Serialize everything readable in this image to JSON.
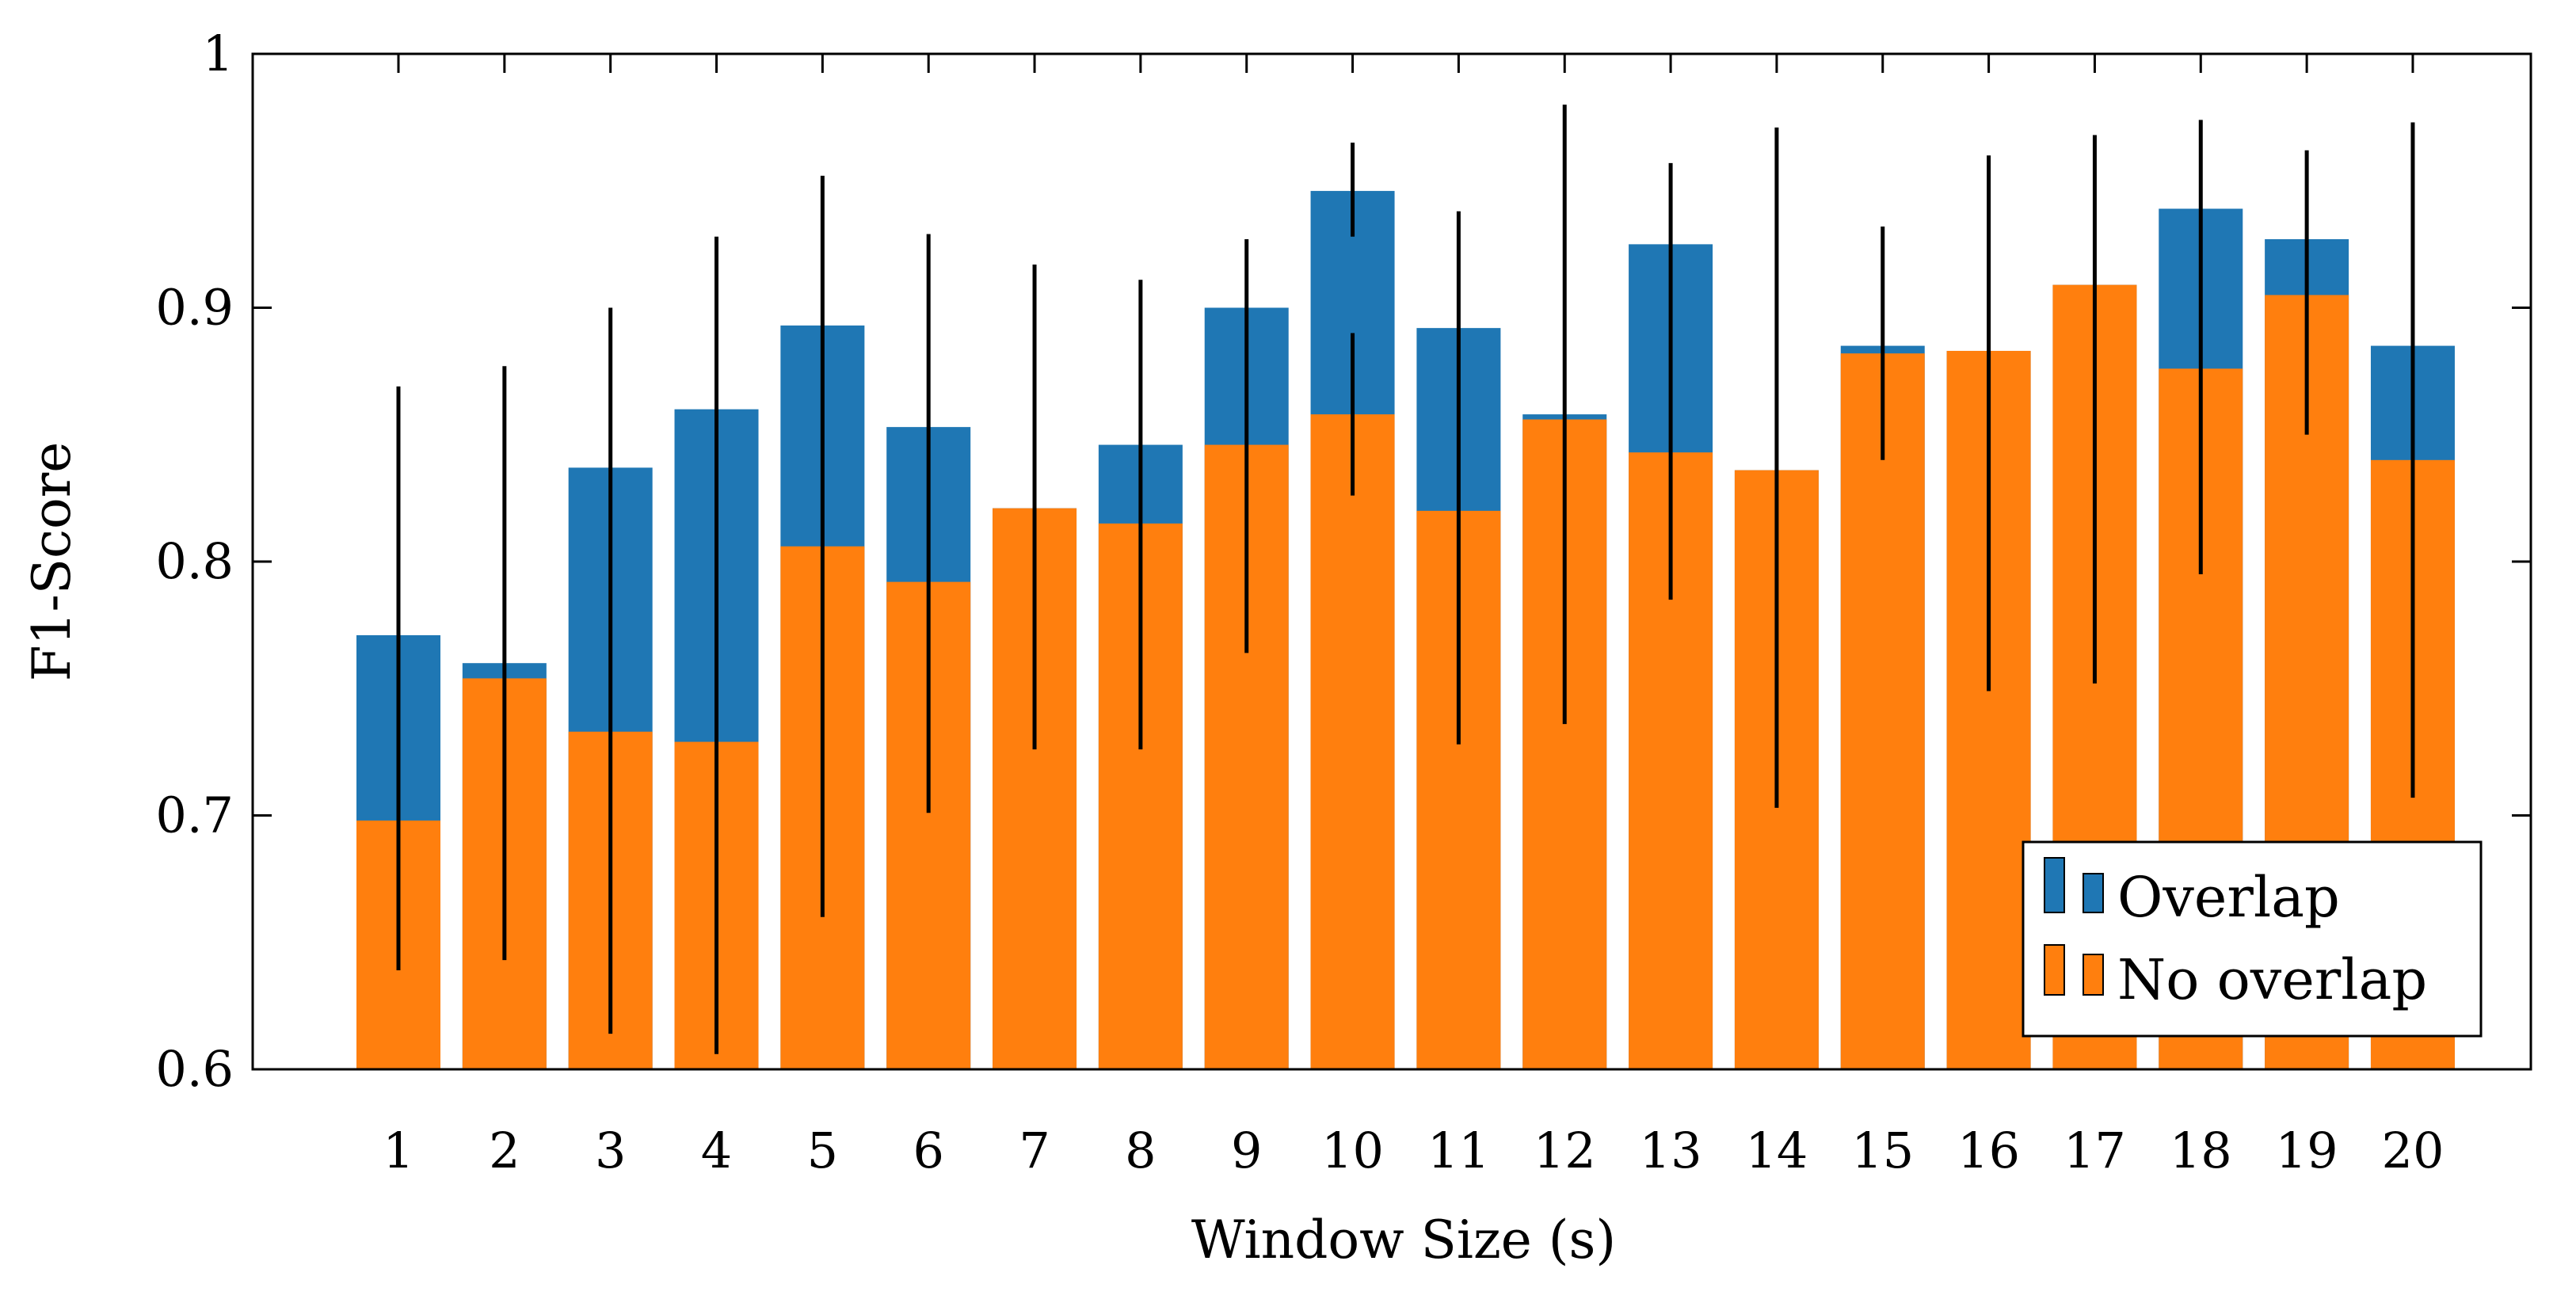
{
  "chart_data": {
    "type": "bar",
    "title": "",
    "xlabel": "Window Size (s)",
    "ylabel": "F1-Score",
    "ylim": [
      0.6,
      1.0
    ],
    "yticks": [
      "0.6",
      "0.7",
      "0.8",
      "0.9",
      "1"
    ],
    "categories": [
      "1",
      "2",
      "3",
      "4",
      "5",
      "6",
      "7",
      "8",
      "9",
      "10",
      "11",
      "12",
      "13",
      "14",
      "15",
      "16",
      "17",
      "18",
      "19",
      "20"
    ],
    "legend_position": "bottom-right",
    "series": [
      {
        "name": "Overlap",
        "color": "#1f77b4",
        "values": [
          0.771,
          0.76,
          0.837,
          0.86,
          0.893,
          0.853,
          0.821,
          0.846,
          0.9,
          0.946,
          0.892,
          0.858,
          0.925,
          0.836,
          0.885,
          0.883,
          0.909,
          0.939,
          0.927,
          0.885
        ],
        "error_low": [
          0.639,
          0.643,
          0.614,
          0.606,
          0.66,
          0.701,
          0.726,
          0.726,
          0.764,
          0.928,
          0.728,
          0.736,
          0.785,
          0.703,
          0.84,
          0.749,
          0.752,
          0.795,
          0.85,
          0.707
        ],
        "error_high": [
          0.869,
          0.877,
          0.9,
          0.928,
          0.952,
          0.929,
          0.917,
          0.911,
          0.927,
          0.965,
          0.938,
          0.98,
          0.957,
          0.971,
          0.932,
          0.96,
          0.968,
          0.974,
          0.962,
          0.973
        ]
      },
      {
        "name": "No overlap",
        "color": "#ff7f0e",
        "values": [
          0.698,
          0.754,
          0.733,
          0.729,
          0.806,
          0.792,
          0.821,
          0.815,
          0.846,
          0.858,
          0.82,
          0.856,
          0.843,
          0.836,
          0.882,
          0.883,
          0.909,
          0.876,
          0.905,
          0.84
        ],
        "error_low": [
          null,
          null,
          null,
          null,
          null,
          null,
          null,
          null,
          null,
          0.826,
          null,
          null,
          null,
          null,
          null,
          null,
          null,
          null,
          null,
          null
        ],
        "error_high": [
          null,
          null,
          null,
          null,
          null,
          null,
          null,
          null,
          null,
          0.89,
          null,
          null,
          null,
          null,
          null,
          null,
          null,
          null,
          null,
          null
        ]
      }
    ]
  }
}
